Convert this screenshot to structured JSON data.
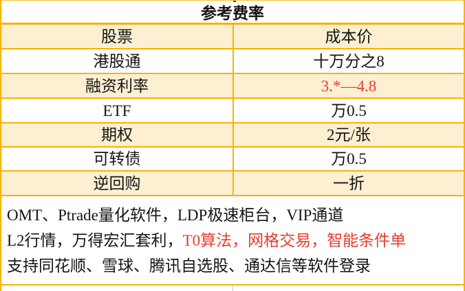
{
  "table": {
    "title": "参考费率",
    "header": {
      "left": "股票",
      "right": "成本价"
    },
    "rows": [
      {
        "label": "港股通",
        "value": "十万分之8"
      },
      {
        "label": "融资利率",
        "value": "3.*—4.8"
      },
      {
        "label": "ETF",
        "value": "万0.5"
      },
      {
        "label": "期权",
        "value": "2元/张"
      },
      {
        "label": "可转债",
        "value": "万0.5"
      },
      {
        "label": "逆回购",
        "value": "一折"
      }
    ]
  },
  "notes": [
    {
      "plain": "OMT、Ptrade量化软件，LDP极速柜台，VIP通道",
      "red": ""
    },
    {
      "plain": "L2行情，万得宏汇套利，",
      "red": "T0算法，网格交易，智能条件单"
    },
    {
      "plain": "支持同花顺、雪球、腾讯自选股、通达信等软件登录",
      "red": ""
    }
  ],
  "colors": {
    "border_gold": "#f7b301",
    "row_highlight_cream": "#fcefd2",
    "red_text": "#e53c2e",
    "text": "#141414"
  }
}
